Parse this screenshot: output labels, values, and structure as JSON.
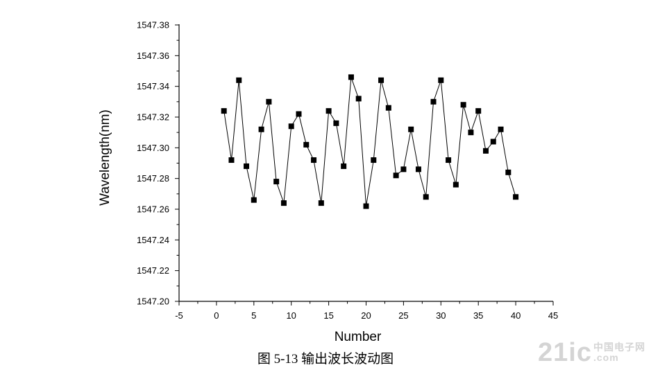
{
  "chart_data": {
    "type": "line",
    "xlabel": "Number",
    "ylabel": "Wavelength(nm)",
    "xlim": [
      -5,
      45
    ],
    "ylim": [
      1547.2,
      1547.38
    ],
    "x_ticks": [
      -5,
      0,
      5,
      10,
      15,
      20,
      25,
      30,
      35,
      40,
      45
    ],
    "y_ticks": [
      "1547.20",
      "1547.22",
      "1547.24",
      "1547.26",
      "1547.28",
      "1547.30",
      "1547.32",
      "1547.34",
      "1547.36",
      "1547.38"
    ],
    "grid": false,
    "marker": "square",
    "series": [
      {
        "x": [
          1,
          2,
          3,
          4,
          5,
          6,
          7,
          8,
          9,
          10,
          11,
          12,
          13,
          14,
          15,
          16,
          17,
          18,
          19,
          20,
          21,
          22,
          23,
          24,
          25,
          26,
          27,
          28,
          29,
          30,
          31,
          32,
          33,
          34,
          35,
          36,
          37,
          38,
          39,
          40
        ],
        "values": [
          1547.324,
          1547.292,
          1547.344,
          1547.288,
          1547.266,
          1547.312,
          1547.33,
          1547.278,
          1547.264,
          1547.314,
          1547.322,
          1547.302,
          1547.292,
          1547.264,
          1547.324,
          1547.316,
          1547.288,
          1547.346,
          1547.332,
          1547.262,
          1547.292,
          1547.344,
          1547.326,
          1547.282,
          1547.286,
          1547.312,
          1547.286,
          1547.268,
          1547.33,
          1547.344,
          1547.292,
          1547.276,
          1547.328,
          1547.31,
          1547.324,
          1547.298,
          1547.304,
          1547.312,
          1547.284,
          1547.268
        ]
      }
    ]
  },
  "caption": "图 5-13  输出波长波动图",
  "watermark": {
    "main": "21ic",
    "sub_top": "中国电子网",
    "sub_bottom": ".com"
  }
}
